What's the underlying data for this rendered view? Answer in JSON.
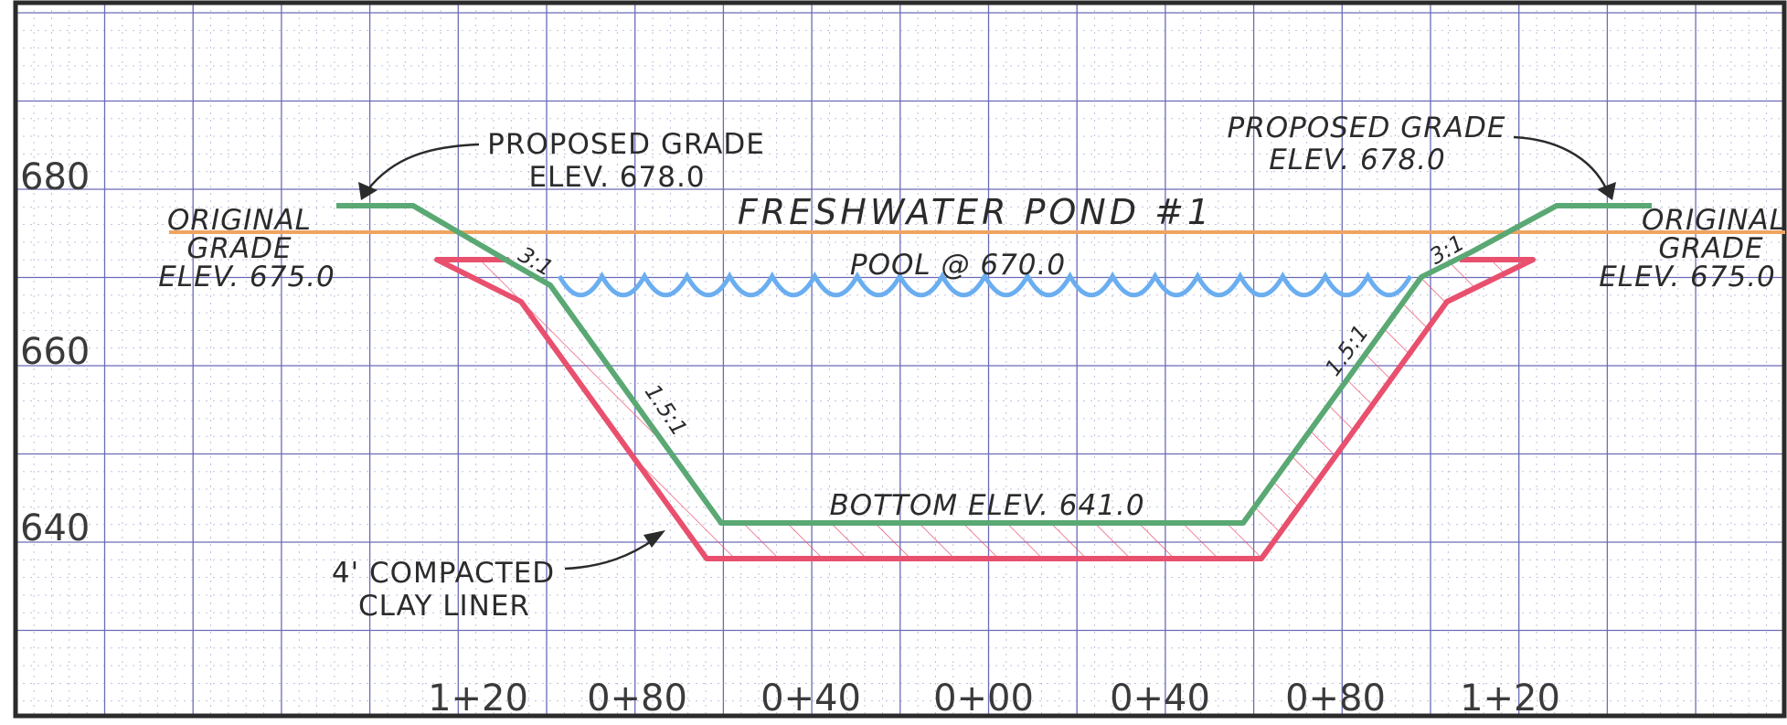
{
  "title": "FRESHWATER POND #1",
  "elevation_labels": [
    "680",
    "660",
    "640"
  ],
  "station_labels": [
    "1+20",
    "0+80",
    "0+40",
    "0+00",
    "0+40",
    "0+80",
    "1+20"
  ],
  "pool_label": "POOL @ 670.0",
  "bottom_label": "BOTTOM ELEV. 641.0",
  "left": {
    "proposed_grade": [
      "PROPOSED GRADE",
      "ELEV. 678.0"
    ],
    "original_grade": [
      "ORIGINAL",
      "GRADE",
      "ELEV. 675.0"
    ],
    "slope_top": "3:1",
    "slope_side": "1.5:1",
    "liner": [
      "4' COMPACTED",
      "CLAY LINER"
    ]
  },
  "right": {
    "proposed_grade": [
      "PROPOSED GRADE",
      "ELEV. 678.0"
    ],
    "original_grade": [
      "ORIGINAL",
      "GRADE",
      "ELEV. 675.0"
    ],
    "slope_top": "3:1",
    "slope_side": "1.5:1"
  },
  "colors": {
    "proposed_grade": "#5aa873",
    "original_grade": "#f0a460",
    "pool": "#6aaef0",
    "liner": "#e8506e",
    "grid_major": "#6b6bb8",
    "grid_minor": "#b9b9dc",
    "border": "#2b2b2b"
  }
}
